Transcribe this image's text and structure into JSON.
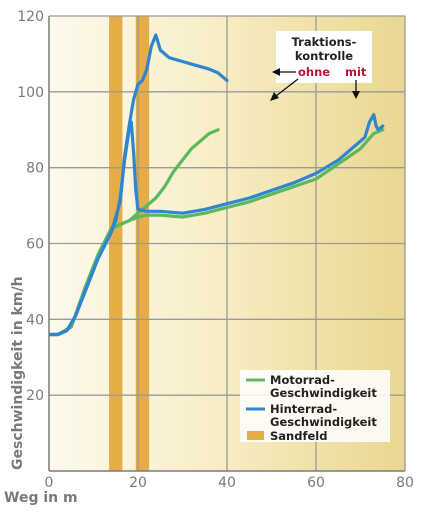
{
  "colors": {
    "motorrad": "#5cb85c",
    "hinterrad": "#2e86d1",
    "sandfeld": "#e6ad47",
    "grid": "#9a9a9a",
    "axis_text": "#7a7a7a",
    "highlight": "#c0133a"
  },
  "chart_data": {
    "type": "line",
    "xlabel": "Weg in m",
    "ylabel": "Geschwindigkeit in km/h",
    "xlim": [
      0,
      80
    ],
    "ylim": [
      0,
      120
    ],
    "xticks": [
      "0",
      "20",
      "40",
      "60",
      "80"
    ],
    "yticks": [
      "20",
      "40",
      "60",
      "80",
      "100",
      "120"
    ],
    "xtick_values": [
      0,
      20,
      40,
      60,
      80
    ],
    "ytick_values": [
      20,
      40,
      60,
      80,
      100,
      120
    ],
    "grid": true,
    "legend_position": "bottom-right",
    "sand_fields": [
      [
        13.5,
        16.5
      ],
      [
        19.5,
        22.5
      ]
    ],
    "series": [
      {
        "name": "Motorrad-Geschwindigkeit",
        "color_key": "motorrad",
        "runs": [
          {
            "label": "ohne",
            "points": [
              [
                0,
                36
              ],
              [
                2,
                36
              ],
              [
                5,
                38
              ],
              [
                8,
                48
              ],
              [
                11,
                57
              ],
              [
                14,
                64
              ],
              [
                16,
                65
              ],
              [
                18,
                66
              ],
              [
                20,
                68
              ],
              [
                22,
                70
              ],
              [
                24,
                72
              ],
              [
                26,
                75
              ],
              [
                28,
                79
              ],
              [
                30,
                82
              ],
              [
                32,
                85
              ],
              [
                34,
                87
              ],
              [
                36,
                89
              ],
              [
                38,
                90
              ]
            ]
          },
          {
            "label": "mit",
            "points": [
              [
                0,
                36
              ],
              [
                2,
                36
              ],
              [
                5,
                38
              ],
              [
                8,
                48
              ],
              [
                11,
                57
              ],
              [
                14,
                64
              ],
              [
                16,
                65
              ],
              [
                18,
                66
              ],
              [
                20,
                67
              ],
              [
                22,
                67.5
              ],
              [
                25,
                67.5
              ],
              [
                30,
                67
              ],
              [
                35,
                68
              ],
              [
                40,
                69.5
              ],
              [
                45,
                71
              ],
              [
                50,
                73
              ],
              [
                55,
                75
              ],
              [
                60,
                77
              ],
              [
                65,
                81
              ],
              [
                70,
                85
              ],
              [
                73,
                89
              ],
              [
                75,
                90
              ]
            ]
          }
        ]
      },
      {
        "name": "Hinterrad-Geschwindigkeit",
        "color_key": "hinterrad",
        "runs": [
          {
            "label": "ohne",
            "points": [
              [
                0,
                36
              ],
              [
                2,
                36
              ],
              [
                4,
                37
              ],
              [
                6,
                41
              ],
              [
                8,
                47
              ],
              [
                11,
                56
              ],
              [
                14,
                63
              ],
              [
                16,
                71
              ],
              [
                17,
                83
              ],
              [
                18,
                91
              ],
              [
                19,
                98
              ],
              [
                20,
                102
              ],
              [
                21,
                103
              ],
              [
                22,
                106
              ],
              [
                23,
                112
              ],
              [
                24,
                115
              ],
              [
                25,
                111
              ],
              [
                27,
                109
              ],
              [
                30,
                108
              ],
              [
                33,
                107
              ],
              [
                36,
                106
              ],
              [
                38,
                105
              ],
              [
                39,
                104
              ],
              [
                40,
                103
              ]
            ]
          },
          {
            "label": "mit",
            "points": [
              [
                0,
                36
              ],
              [
                2,
                36
              ],
              [
                4,
                37
              ],
              [
                6,
                41
              ],
              [
                8,
                47
              ],
              [
                11,
                56
              ],
              [
                14,
                63
              ],
              [
                15,
                66
              ],
              [
                16,
                72
              ],
              [
                17,
                82
              ],
              [
                18,
                90
              ],
              [
                18.5,
                92
              ],
              [
                19,
                84
              ],
              [
                19.5,
                74
              ],
              [
                20,
                69
              ],
              [
                22,
                68.5
              ],
              [
                25,
                68.5
              ],
              [
                30,
                68
              ],
              [
                35,
                69
              ],
              [
                40,
                70.5
              ],
              [
                45,
                72
              ],
              [
                50,
                74
              ],
              [
                55,
                76
              ],
              [
                60,
                78.5
              ],
              [
                65,
                82
              ],
              [
                69,
                86
              ],
              [
                71,
                88
              ],
              [
                72,
                92
              ],
              [
                73,
                94
              ],
              [
                73.5,
                91
              ],
              [
                74,
                90
              ],
              [
                75,
                91
              ]
            ]
          }
        ]
      }
    ]
  },
  "annotation": {
    "line1": "Traktions-",
    "line2": "kontrolle",
    "ohne": "ohne",
    "mit": "mit"
  },
  "legend": {
    "motorrad_line1": "Motorrad-",
    "motorrad_line2": "Geschwindigkeit",
    "hinterrad_line1": "Hinterrad-",
    "hinterrad_line2": "Geschwindigkeit",
    "sandfeld": "Sandfeld"
  }
}
